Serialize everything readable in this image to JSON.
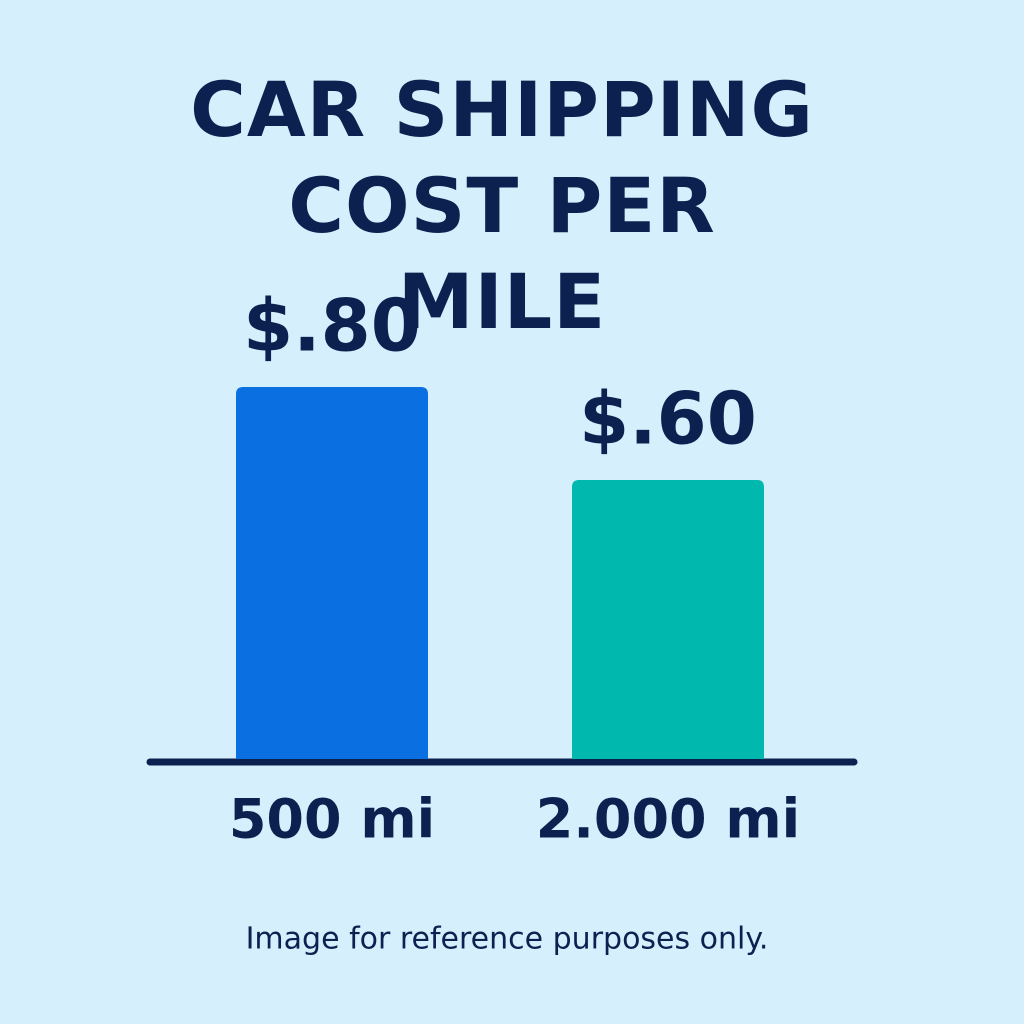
{
  "chart_data": {
    "type": "bar",
    "title": "CAR SHIPPING COST PER MILE",
    "categories": [
      "500 mi",
      "2.000 mi"
    ],
    "values": [
      0.8,
      0.6
    ],
    "value_labels": [
      "$.80",
      "$.60"
    ],
    "colors": [
      "#0a6fe0",
      "#00b8ad"
    ],
    "note": "Image for reference purposes only."
  }
}
